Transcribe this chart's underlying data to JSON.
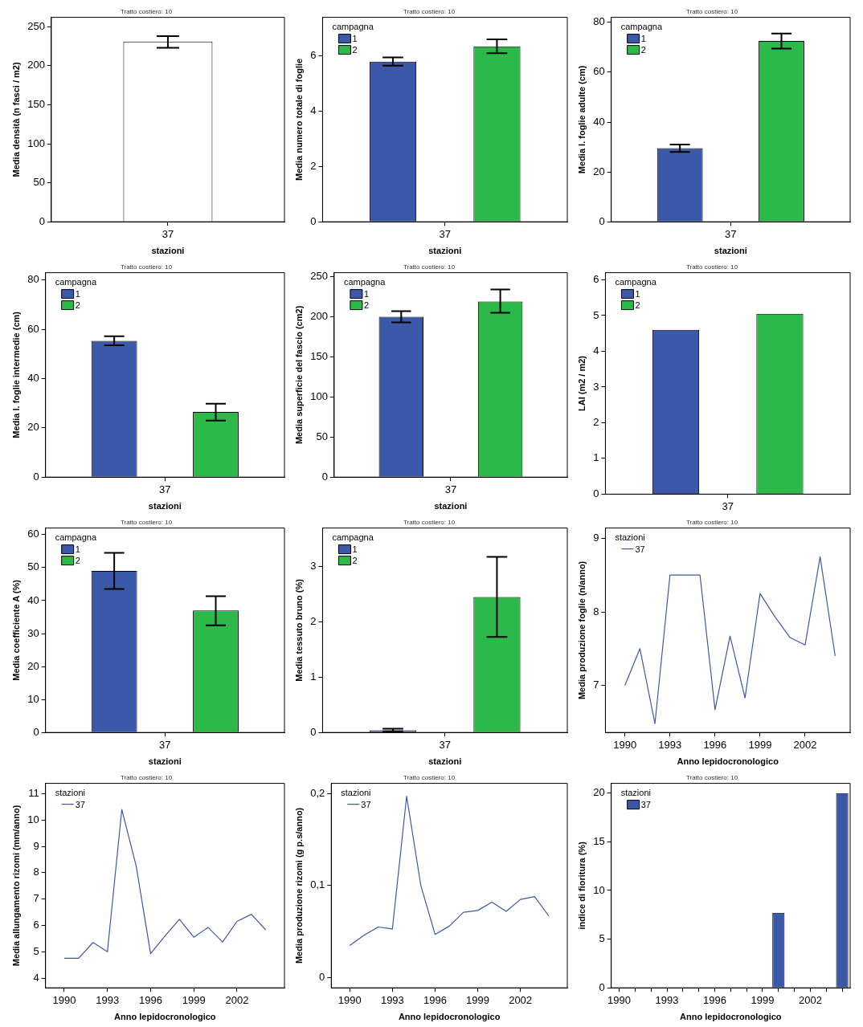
{
  "chart_data": [
    {
      "type": "bar",
      "title": "Tratto costiero: 10",
      "xlabel": "stazioni",
      "ylabel": "Media densità (n fasci / m2)",
      "categories": [
        "37"
      ],
      "series": [
        {
          "color": "#ffffff",
          "values": [
            231
          ],
          "errors": [
            [
              223,
              238
            ]
          ]
        }
      ],
      "ylim": [
        0,
        262
      ],
      "yticks": [
        0,
        50,
        100,
        150,
        200,
        250
      ],
      "grid": false
    },
    {
      "type": "bar",
      "title": "Tratto costiero: 10",
      "xlabel": "stazioni",
      "ylabel": "Media numero totale di foglie",
      "legend_title": "campagna",
      "legend": "top left",
      "categories": [
        "37"
      ],
      "series": [
        {
          "name": "1",
          "color": "#3c58a8",
          "values": [
            5.8
          ],
          "errors": [
            [
              5.65,
              5.95
            ]
          ]
        },
        {
          "name": "2",
          "color": "#2db84a",
          "values": [
            6.35
          ],
          "errors": [
            [
              6.1,
              6.6
            ]
          ]
        }
      ],
      "ylim": [
        0,
        7.4
      ],
      "yticks": [
        0,
        2,
        4,
        6
      ],
      "grid": false
    },
    {
      "type": "bar",
      "title": "Tratto costiero: 10",
      "xlabel": "stazioni",
      "ylabel": "Media l. foglie adulte (cm)",
      "legend_title": "campagna",
      "legend": "top left",
      "categories": [
        "37"
      ],
      "series": [
        {
          "name": "1",
          "color": "#3c58a8",
          "values": [
            29.5
          ],
          "errors": [
            [
              28,
              31
            ]
          ]
        },
        {
          "name": "2",
          "color": "#2db84a",
          "values": [
            72.5
          ],
          "errors": [
            [
              69.5,
              75.5
            ]
          ]
        }
      ],
      "ylim": [
        0,
        82
      ],
      "yticks": [
        0,
        20,
        40,
        60,
        80
      ],
      "grid": false
    },
    {
      "type": "bar",
      "title": "Tratto costiero: 10",
      "xlabel": "stazioni",
      "ylabel": "Media l. foglie intermedie (cm)",
      "legend_title": "campagna",
      "legend": "top left",
      "categories": [
        "37"
      ],
      "series": [
        {
          "name": "1",
          "color": "#3c58a8",
          "values": [
            55.3
          ],
          "errors": [
            [
              53.5,
              57.2
            ]
          ]
        },
        {
          "name": "2",
          "color": "#2db84a",
          "values": [
            26.5
          ],
          "errors": [
            [
              23,
              29.8
            ]
          ]
        }
      ],
      "ylim": [
        0,
        83
      ],
      "yticks": [
        0,
        20,
        40,
        60,
        80
      ],
      "grid": false
    },
    {
      "type": "bar",
      "title": "Tratto costiero: 10",
      "xlabel": "stazioni",
      "ylabel": "Media superficie del fascio (cm2)",
      "legend_title": "campagna",
      "legend": "top left",
      "categories": [
        "37"
      ],
      "series": [
        {
          "name": "1",
          "color": "#3c58a8",
          "values": [
            200
          ],
          "errors": [
            [
              193,
              207
            ]
          ]
        },
        {
          "name": "2",
          "color": "#2db84a",
          "values": [
            219
          ],
          "errors": [
            [
              205,
              234
            ]
          ]
        }
      ],
      "ylim": [
        0,
        255
      ],
      "yticks": [
        0,
        50,
        100,
        150,
        200,
        250
      ],
      "grid": false
    },
    {
      "type": "bar",
      "title": "Tratto costiero: 10",
      "ylabel": "LAI (m2 / m2)",
      "legend_title": "campagna",
      "legend": "top left",
      "categories": [
        "37"
      ],
      "series": [
        {
          "name": "1",
          "color": "#3c58a8",
          "values": [
            4.6
          ]
        },
        {
          "name": "2",
          "color": "#2db84a",
          "values": [
            5.05
          ]
        }
      ],
      "ylim": [
        0,
        6.2
      ],
      "yticks": [
        0,
        1,
        2,
        3,
        4,
        5,
        6
      ],
      "grid": false
    },
    {
      "type": "bar",
      "title": "Tratto costiero: 10",
      "xlabel": "stazioni",
      "ylabel": "Media coefficiente A (%)",
      "legend_title": "campagna",
      "legend": "top left",
      "categories": [
        "37"
      ],
      "series": [
        {
          "name": "1",
          "color": "#3c58a8",
          "values": [
            49
          ],
          "errors": [
            [
              43.5,
              54.5
            ]
          ]
        },
        {
          "name": "2",
          "color": "#2db84a",
          "values": [
            37
          ],
          "errors": [
            [
              32.5,
              41.3
            ]
          ]
        }
      ],
      "ylim": [
        0,
        62
      ],
      "yticks": [
        0,
        10,
        20,
        30,
        40,
        50,
        60
      ],
      "grid": false
    },
    {
      "type": "bar",
      "title": "Tratto costiero: 10",
      "xlabel": "stazioni",
      "ylabel": "Media tessuto bruno (%)",
      "legend_title": "campagna",
      "legend": "top left",
      "categories": [
        "37"
      ],
      "series": [
        {
          "name": "1",
          "color": "#3c58a8",
          "values": [
            0.04
          ],
          "errors": [
            [
              0.02,
              0.07
            ]
          ]
        },
        {
          "name": "2",
          "color": "#2db84a",
          "values": [
            2.45
          ],
          "errors": [
            [
              1.73,
              3.18
            ]
          ]
        }
      ],
      "ylim": [
        0,
        3.7
      ],
      "yticks": [
        0,
        1,
        2,
        3
      ],
      "grid": false
    },
    {
      "type": "line",
      "title": "Tratto costiero: 10",
      "xlabel": "Anno lepidocronologico",
      "ylabel": "Media produzione foglie (n/anno)",
      "legend_title": "stazioni",
      "legend": "top left",
      "marker": "none",
      "x": [
        1990,
        1991,
        1992,
        1993,
        1994,
        1995,
        1996,
        1997,
        1998,
        1999,
        2000,
        2001,
        2002,
        2003,
        2004
      ],
      "series": [
        {
          "name": "37",
          "color": "#3c58a8",
          "values": [
            7.0,
            7.5,
            6.48,
            8.5,
            8.5,
            8.5,
            6.67,
            7.67,
            6.83,
            8.25,
            7.93,
            7.65,
            7.55,
            8.75,
            7.4
          ]
        }
      ],
      "xlim": [
        1988.7,
        2005
      ],
      "xticks": [
        1990,
        1993,
        1996,
        1999,
        2002
      ],
      "ylim": [
        6.36,
        9.14
      ],
      "yticks": [
        7,
        8,
        9
      ],
      "grid": false
    },
    {
      "type": "line",
      "title": "Tratto costiero: 10",
      "xlabel": "Anno lepidocronologico",
      "ylabel": "Media allungamento rizomi (mm/anno)",
      "legend_title": "stazioni",
      "legend": "top left",
      "marker": "none",
      "x": [
        1990,
        1991,
        1992,
        1993,
        1994,
        1995,
        1996,
        1997,
        1998,
        1999,
        2000,
        2001,
        2002,
        2003,
        2004
      ],
      "series": [
        {
          "name": "37",
          "color": "#3c58a8",
          "values": [
            4.75,
            4.75,
            5.35,
            5.0,
            10.4,
            8.25,
            4.93,
            5.6,
            6.23,
            5.55,
            5.92,
            5.37,
            6.15,
            6.42,
            5.83
          ]
        }
      ],
      "xlim": [
        1988.7,
        2005.3
      ],
      "xticks": [
        1990,
        1993,
        1996,
        1999,
        2002
      ],
      "ylim": [
        3.63,
        11.39
      ],
      "yticks": [
        4,
        5,
        6,
        7,
        8,
        9,
        10,
        11
      ],
      "grid": false
    },
    {
      "type": "line",
      "title": "Tratto costiero: 10",
      "xlabel": "Anno lepidocronologico",
      "ylabel": "Media produzione rizomi (g p.s/anno)",
      "legend_title": "stazioni",
      "legend": "top left",
      "marker": "none",
      "x": [
        1990,
        1991,
        1992,
        1993,
        1994,
        1995,
        1996,
        1997,
        1998,
        1999,
        2000,
        2001,
        2002,
        2003,
        2004
      ],
      "series": [
        {
          "name": "37",
          "color": "#3c58a8",
          "values": [
            0.035,
            0.046,
            0.055,
            0.053,
            0.197,
            0.1,
            0.047,
            0.056,
            0.071,
            0.073,
            0.082,
            0.072,
            0.085,
            0.088,
            0.067
          ]
        }
      ],
      "xlim": [
        1988.7,
        2005.3
      ],
      "xticks": [
        1990,
        1993,
        1996,
        1999,
        2002
      ],
      "ylim": [
        -0.011,
        0.211
      ],
      "yticks": [
        0,
        {
          "value": 0.1,
          "label": "0,1"
        },
        {
          "value": 0.2,
          "label": "0,2"
        }
      ],
      "grid": false
    },
    {
      "type": "bar",
      "title": "Tratto costiero: 10",
      "xlabel": "Anno lepidocronologico",
      "ylabel": "indice di fioritura (%)",
      "legend_title": "stazioni",
      "legend": "top left",
      "categories": [
        "1990",
        null,
        null,
        "1993",
        null,
        null,
        "1996",
        null,
        null,
        "1999",
        null,
        null,
        "2002",
        null,
        null
      ],
      "series": [
        {
          "name": "37",
          "color": "#3c58a8",
          "values": [
            null,
            null,
            null,
            null,
            null,
            null,
            null,
            null,
            null,
            null,
            7.7,
            null,
            null,
            null,
            20
          ]
        }
      ],
      "ylim": [
        0,
        21
      ],
      "yticks": [
        0,
        5,
        10,
        15,
        20
      ],
      "grid": false
    }
  ]
}
